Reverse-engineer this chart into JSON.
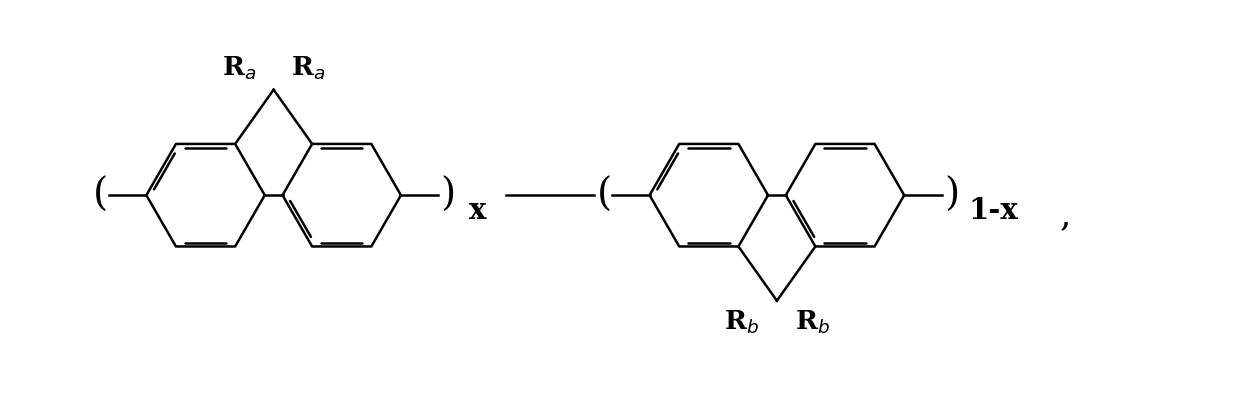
{
  "bg_color": "#ffffff",
  "line_color": "#000000",
  "line_width": 1.8,
  "dbo": 0.038,
  "fig_width": 12.4,
  "fig_height": 4.2,
  "dpi": 100,
  "label_Ra": "R$_a$",
  "label_Rb": "R$_b$",
  "label_x": "x",
  "label_1x": "1-x",
  "label_comma": ","
}
